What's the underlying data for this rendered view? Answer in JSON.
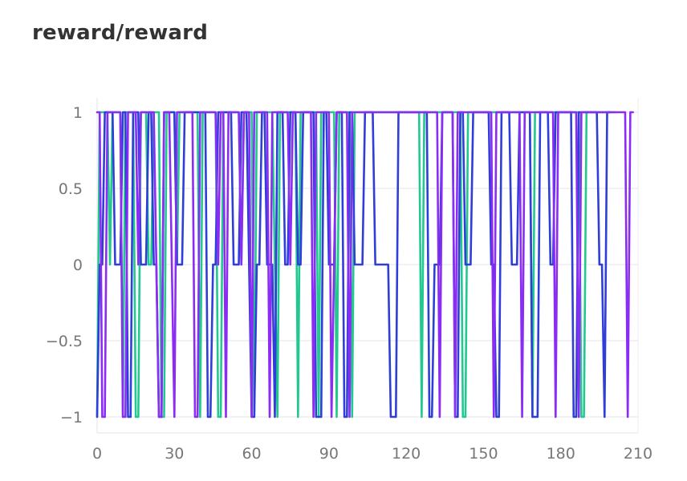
{
  "panel": {
    "title": "reward/reward"
  },
  "chart_data": {
    "type": "line",
    "title": "reward/reward",
    "xlabel": "",
    "ylabel": "",
    "xlim": [
      0,
      210
    ],
    "ylim": [
      -1,
      1
    ],
    "x_ticks": [
      0,
      30,
      60,
      90,
      120,
      150,
      180,
      210
    ],
    "y_ticks": [
      {
        "value": 1,
        "label": "1"
      },
      {
        "value": 0.5,
        "label": "0.5"
      },
      {
        "value": 0,
        "label": "0"
      },
      {
        "value": -0.5,
        "label": "−0.5"
      },
      {
        "value": -1,
        "label": "−1"
      }
    ],
    "grid": true,
    "legend": "none",
    "series": [
      {
        "color": "#22c98e",
        "x_start": 0,
        "y": [
          -1,
          1,
          1,
          1,
          1,
          0,
          1,
          1,
          1,
          1,
          -1,
          1,
          1,
          1,
          1,
          -1,
          -1,
          1,
          1,
          1,
          0,
          0,
          1,
          1,
          1,
          -1,
          -1,
          1,
          1,
          1,
          1,
          0,
          1,
          1,
          1,
          1,
          1,
          1,
          1,
          1,
          -1,
          1,
          1,
          1,
          1,
          1,
          1,
          -1,
          -1,
          1,
          1,
          1,
          1,
          1,
          1,
          1,
          0,
          1,
          1,
          1,
          1,
          -1,
          1,
          1,
          1,
          1,
          1,
          1,
          1,
          0,
          -1,
          1,
          1,
          1,
          1,
          1,
          1,
          1,
          -1,
          1,
          1,
          1,
          1,
          1,
          1,
          1,
          -1,
          1,
          1,
          1,
          1,
          1,
          1,
          -1,
          1,
          1,
          1,
          1,
          1,
          -1,
          1,
          1,
          1,
          1,
          1,
          1,
          1,
          1,
          1,
          1,
          1,
          1,
          1,
          1,
          1,
          1,
          1,
          1,
          1,
          1,
          1,
          1,
          1,
          1,
          1,
          1,
          -1,
          1,
          1,
          1,
          1,
          1,
          1,
          1,
          1,
          1,
          1,
          1,
          1,
          1,
          1,
          1,
          -1,
          -1,
          1,
          1,
          1,
          1,
          1,
          1,
          1,
          1,
          1,
          1,
          1,
          1,
          1,
          1,
          1,
          1,
          1,
          1,
          1,
          1,
          1,
          1,
          1,
          1,
          1,
          -1,
          1,
          1,
          1,
          1,
          1,
          1,
          1,
          1,
          1,
          1,
          1,
          1,
          1,
          1,
          1,
          1,
          1,
          1,
          -1,
          -1,
          1,
          1,
          1,
          1,
          1,
          1,
          1,
          1,
          1,
          1,
          1,
          1
        ]
      },
      {
        "color": "#2f3ed8",
        "x_start": 0,
        "y": [
          -1,
          0,
          0,
          1,
          1,
          1,
          1,
          0,
          0,
          0,
          1,
          1,
          -1,
          -1,
          1,
          1,
          1,
          0,
          0,
          0,
          1,
          1,
          0,
          0,
          -1,
          -1,
          1,
          1,
          1,
          1,
          1,
          0,
          0,
          0,
          1,
          1,
          1,
          1,
          1,
          1,
          1,
          1,
          1,
          -1,
          -1,
          0,
          0,
          1,
          1,
          1,
          1,
          1,
          1,
          0,
          0,
          0,
          1,
          1,
          1,
          0,
          -1,
          -1,
          0,
          0,
          1,
          1,
          0,
          0,
          0,
          -1,
          1,
          1,
          1,
          0,
          0,
          1,
          1,
          1,
          0,
          0,
          1,
          1,
          1,
          1,
          1,
          -1,
          -1,
          -1,
          1,
          1,
          0,
          0,
          0,
          1,
          1,
          1,
          -1,
          -1,
          1,
          1,
          0,
          0,
          0,
          0,
          1,
          1,
          1,
          1,
          0,
          0,
          0,
          0,
          0,
          0,
          -1,
          -1,
          -1,
          1,
          1,
          1,
          1,
          1,
          1,
          1,
          1,
          1,
          1,
          1,
          1,
          -1,
          -1,
          0,
          0,
          0,
          1,
          1,
          1,
          1,
          1,
          -1,
          -1,
          1,
          1,
          0,
          0,
          0,
          1,
          1,
          1,
          1,
          1,
          1,
          1,
          0,
          0,
          -1,
          -1,
          1,
          1,
          1,
          1,
          0,
          0,
          0,
          1,
          1,
          1,
          1,
          1,
          -1,
          -1,
          -1,
          1,
          1,
          1,
          1,
          0,
          0,
          1,
          1,
          1,
          1,
          1,
          1,
          1,
          -1,
          -1,
          1,
          1,
          1,
          1,
          1,
          1,
          1,
          1,
          0,
          0,
          -1,
          1,
          1
        ]
      },
      {
        "color": "#8b2cf5",
        "x_start": 0,
        "y": [
          1,
          1,
          -1,
          -1,
          1,
          1,
          1,
          1,
          1,
          1,
          -1,
          -1,
          1,
          1,
          1,
          1,
          0,
          1,
          1,
          1,
          1,
          1,
          1,
          0,
          -1,
          -1,
          1,
          1,
          1,
          0,
          -1,
          1,
          1,
          1,
          1,
          1,
          1,
          1,
          -1,
          -1,
          1,
          1,
          1,
          1,
          1,
          1,
          1,
          0,
          1,
          1,
          -1,
          1,
          1,
          1,
          1,
          1,
          0,
          1,
          1,
          1,
          -1,
          1,
          1,
          1,
          1,
          1,
          1,
          -1,
          1,
          1,
          1,
          1,
          1,
          1,
          1,
          0,
          1,
          1,
          1,
          1,
          1,
          1,
          1,
          1,
          -1,
          1,
          1,
          1,
          1,
          1,
          1,
          -1,
          0,
          1,
          1,
          1,
          1,
          1,
          -1,
          1,
          1,
          1,
          1,
          1,
          1,
          1,
          1,
          1,
          1,
          1,
          1,
          1,
          1,
          1,
          1,
          1,
          1,
          1,
          1,
          1,
          1,
          1,
          1,
          1,
          1,
          1,
          1,
          1,
          1,
          1,
          1,
          1,
          1,
          -1,
          1,
          1,
          1,
          1,
          1,
          -1,
          1,
          1,
          1,
          1,
          1,
          1,
          1,
          1,
          1,
          1,
          1,
          1,
          1,
          1,
          -1,
          1,
          1,
          1,
          1,
          1,
          1,
          1,
          1,
          1,
          1,
          -1,
          1,
          1,
          1,
          1,
          1,
          1,
          1,
          1,
          1,
          1,
          1,
          1,
          -1,
          1,
          1,
          1,
          1,
          1,
          1,
          1,
          1,
          -1,
          1,
          1,
          1,
          1,
          1,
          1,
          1,
          1,
          1,
          1,
          1,
          1,
          1,
          1,
          1,
          1,
          1,
          1,
          -1,
          1,
          1
        ]
      }
    ]
  }
}
